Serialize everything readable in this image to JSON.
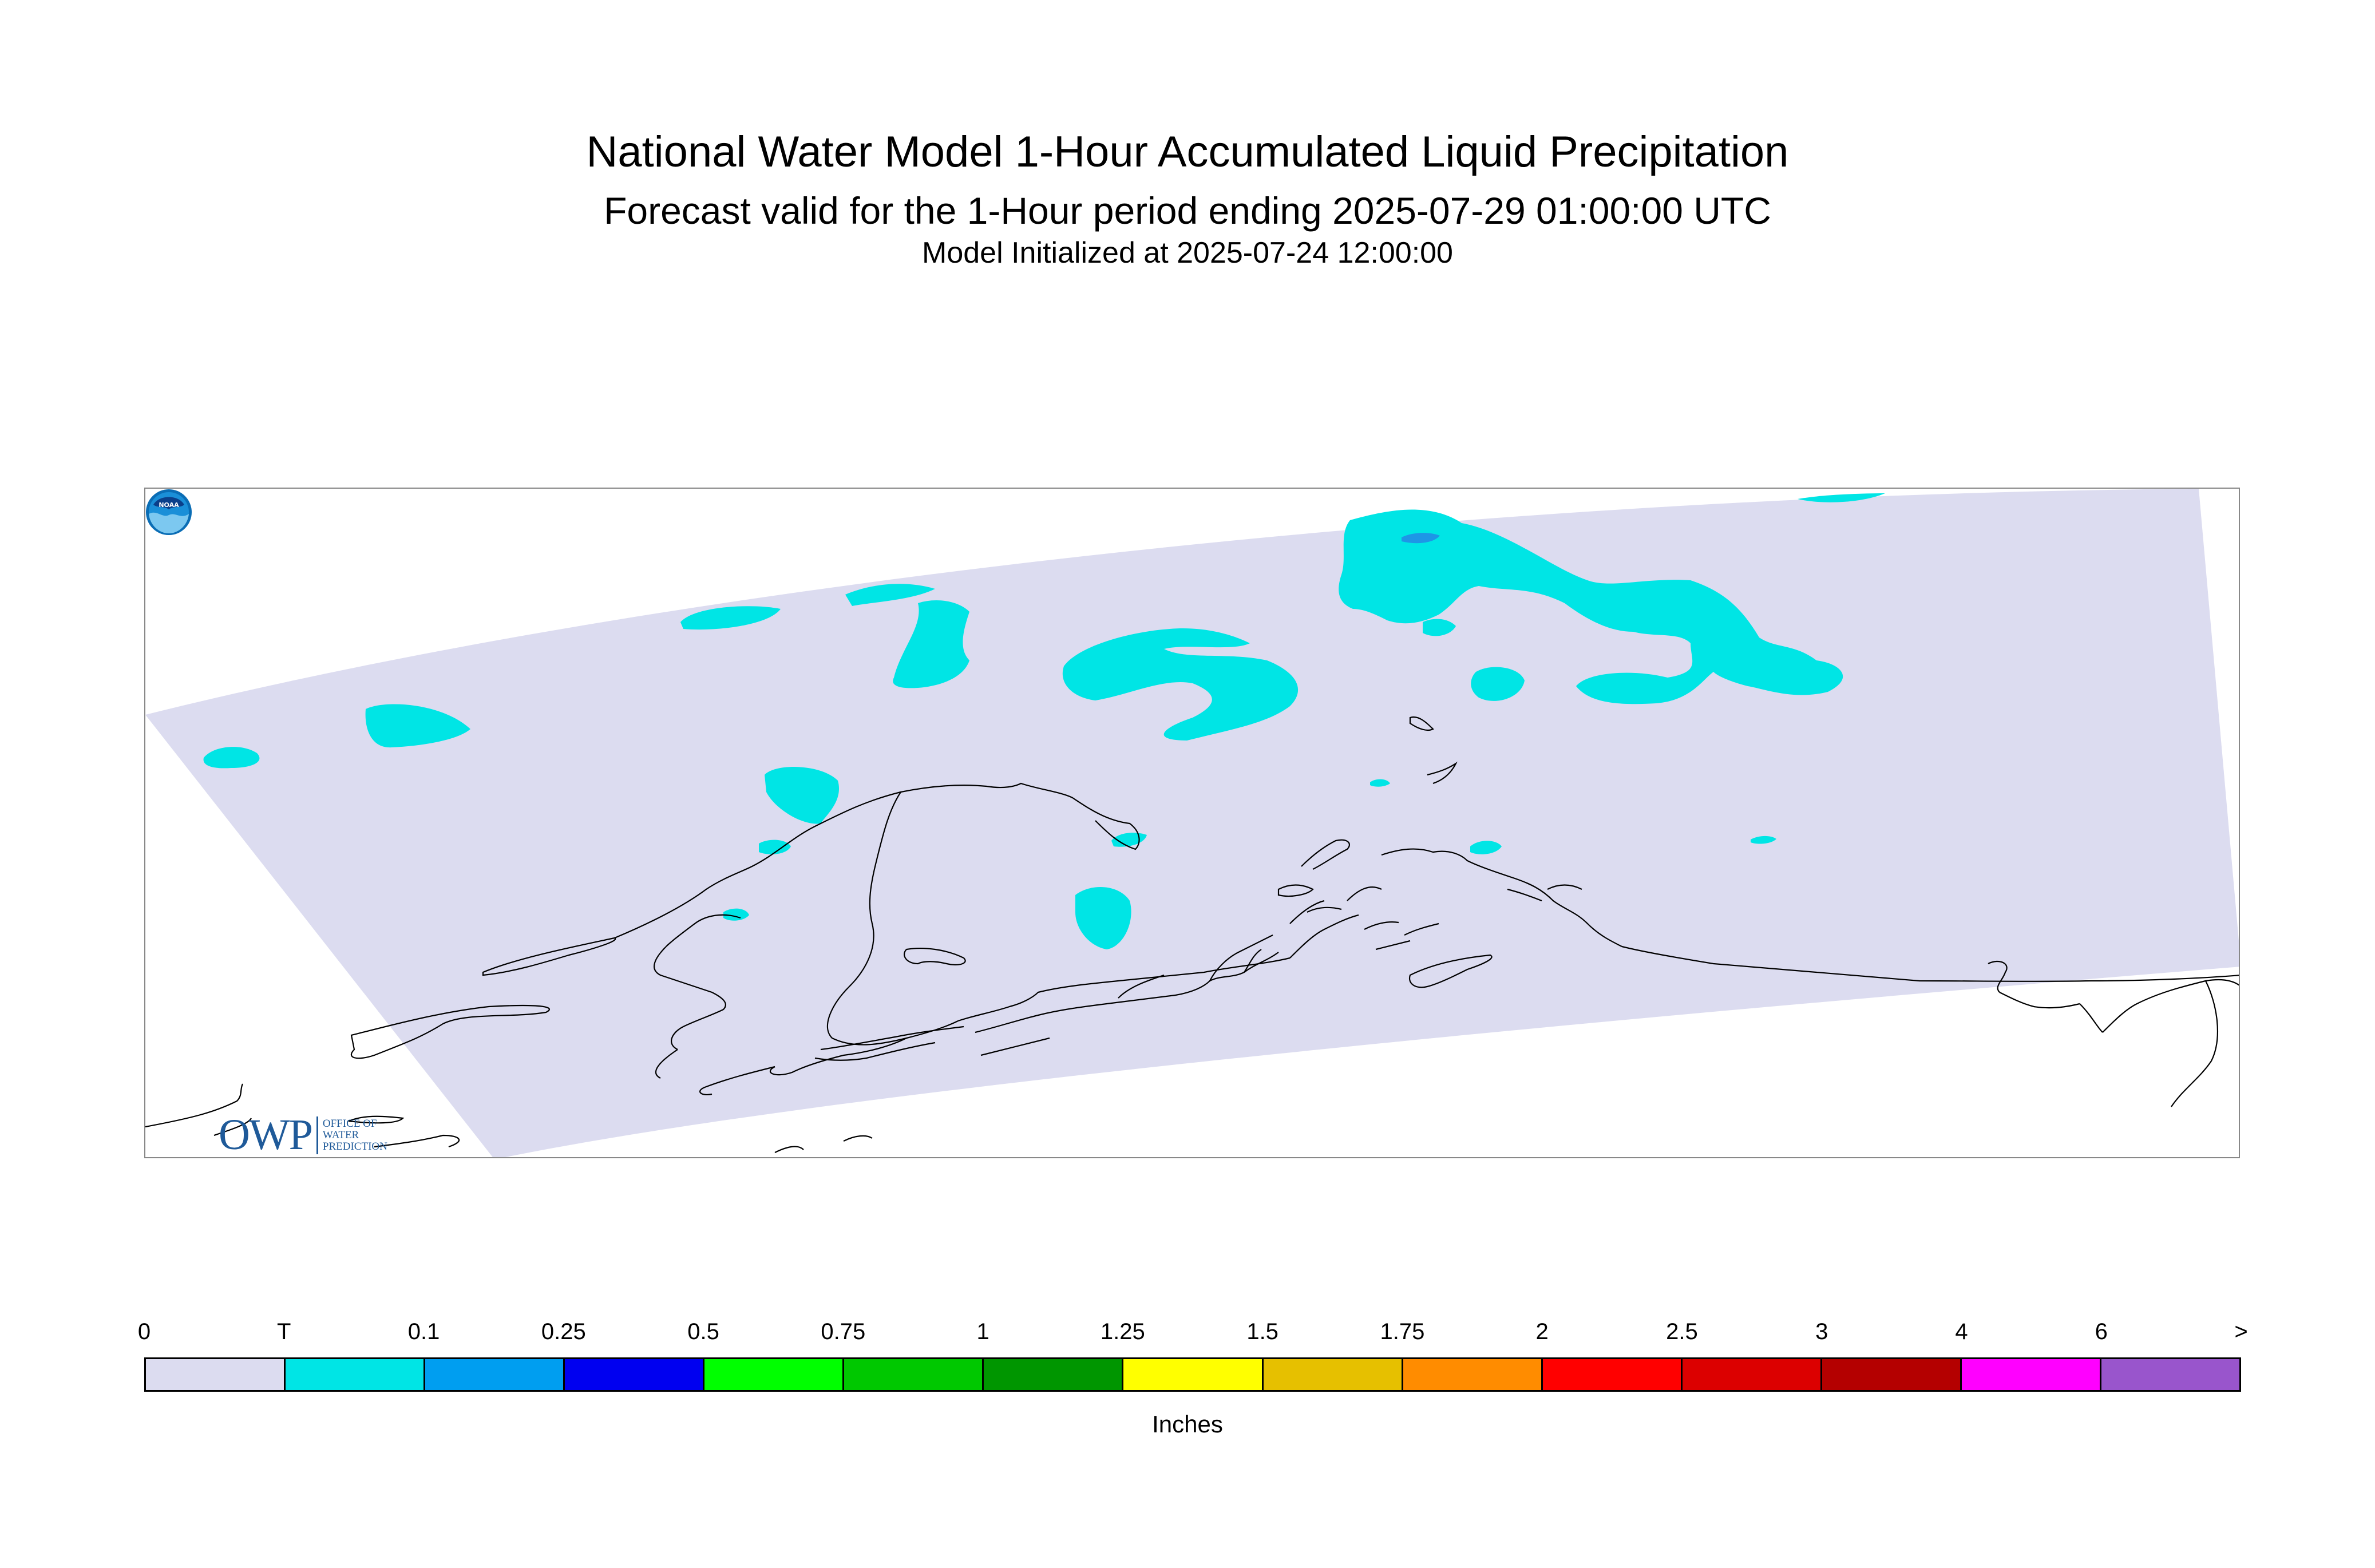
{
  "title": "National Water Model 1-Hour Accumulated Liquid Precipitation",
  "subtitle": "Forecast valid for the 1-Hour period ending 2025-07-29 01:00:00 UTC",
  "init_line": "Model Initialized at 2025-07-24 12:00:00",
  "map": {
    "region": "Alaska",
    "domain_color": "#dcdcf0",
    "precip_color_trace": "#00e5e5",
    "precip_color_light": "#1e96e6",
    "coastline_color": "#000000"
  },
  "logos": {
    "owp": {
      "mark": "OWP",
      "line1": "OFFICE OF",
      "line2": "WATER",
      "line3": "PREDICTION",
      "icon": "owp-logo"
    },
    "noaa": {
      "text": "NOAA",
      "icon": "noaa-logo"
    }
  },
  "legend": {
    "unit_label": "Inches",
    "tick_labels": [
      "0",
      "T",
      "0.1",
      "0.25",
      "0.5",
      "0.75",
      "1",
      "1.25",
      "1.5",
      "1.75",
      "2",
      "2.5",
      "3",
      "4",
      "6",
      ">"
    ],
    "colors": [
      "#dcdcf0",
      "#00e5e5",
      "#009ef0",
      "#0000f0",
      "#00ff00",
      "#00c800",
      "#009600",
      "#ffff00",
      "#e6c000",
      "#ff8c00",
      "#ff0000",
      "#dc0000",
      "#b40000",
      "#ff00ff",
      "#9955cc"
    ]
  }
}
